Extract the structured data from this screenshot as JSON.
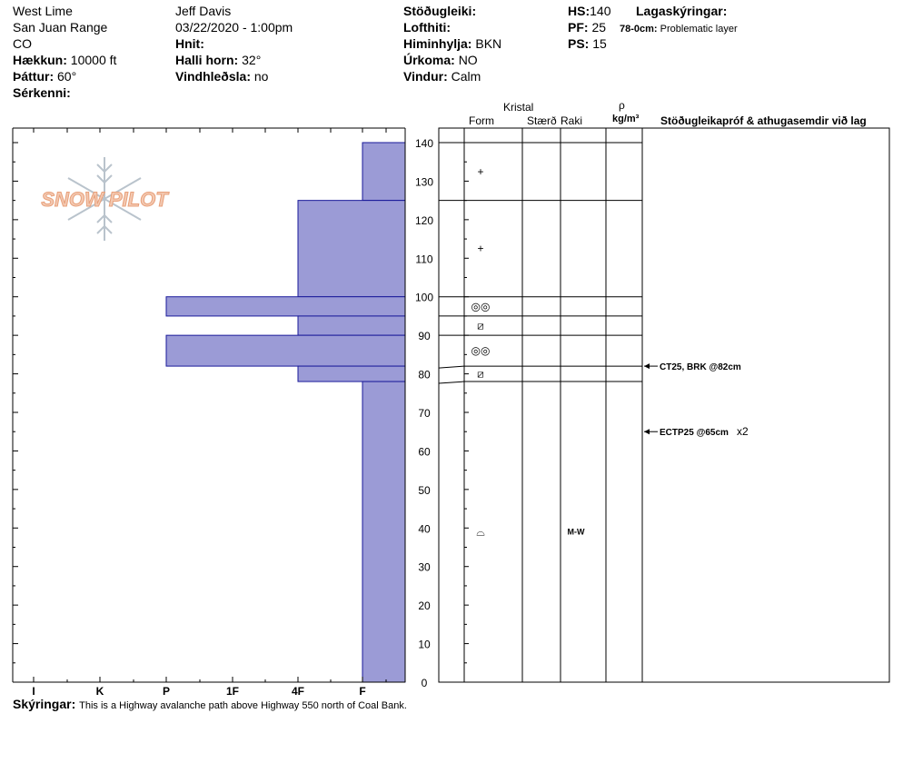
{
  "header": {
    "location": "West Lime",
    "range": "San Juan Range",
    "state": "CO",
    "elevation_label": "Hækkun:",
    "elevation_value": "10000 ft",
    "aspect_label": "Þáttur:",
    "aspect_value": "60°",
    "features_label": "Sérkenni:",
    "observer": "Jeff Davis",
    "datetime": "03/22/2020 - 1:00pm",
    "coords_label": "Hnit:",
    "slope_label": "Halli horn:",
    "slope_value": "32°",
    "wind_loading_label": "Vindhleðsla:",
    "wind_loading_value": "no",
    "stability_label": "Stöðugleiki:",
    "air_temp_label": "Lofthiti:",
    "sky_label": "Himinhylja:",
    "sky_value": "BKN",
    "precip_label": "Úrkoma:",
    "precip_value": "NO",
    "wind_label": "Vindur:",
    "wind_value": "Calm",
    "hs_label": "HS:",
    "hs_value": "140",
    "pf_label": "PF:",
    "pf_value": "25",
    "ps_label": "PS:",
    "ps_value": "15",
    "legend_label": "Lagaskýringar:",
    "legend_range": "78-0cm:",
    "legend_text": "Problematic layer"
  },
  "table_headers": {
    "crystal": "Kristal",
    "form": "Form",
    "size": "Stærð",
    "moisture": "Raki",
    "rho": "ρ",
    "density_unit": "kg/m³",
    "tests": "Stöðugleikapróf & athugasemdir við lag"
  },
  "footer": {
    "comments_label": "Skýringar:",
    "comments_text": "This is a Highway avalanche path above Highway 550 north of Coal Bank."
  },
  "logo_text": "SNOW PILOT",
  "colors": {
    "layer_fill": "#9b9bd6",
    "layer_stroke": "#1a1a9a",
    "logo": "#e8a07a",
    "snowflake": "#b9c3cc"
  },
  "chart_data": {
    "type": "bar",
    "orientation": "horizontal",
    "title": "",
    "ylabel": "",
    "ylim": [
      0,
      140
    ],
    "y_ticks": [
      0,
      10,
      20,
      30,
      40,
      50,
      60,
      70,
      80,
      90,
      100,
      110,
      120,
      130,
      140
    ],
    "hardness_scale": [
      "I",
      "K",
      "P",
      "1F",
      "4F",
      "F"
    ],
    "layers": [
      {
        "top": 140,
        "bottom": 125,
        "hardness": "F"
      },
      {
        "top": 125,
        "bottom": 100,
        "hardness": "4F"
      },
      {
        "top": 100,
        "bottom": 95,
        "hardness": "P"
      },
      {
        "top": 95,
        "bottom": 90,
        "hardness": "4F"
      },
      {
        "top": 90,
        "bottom": 82,
        "hardness": "P"
      },
      {
        "top": 82,
        "bottom": 78,
        "hardness": "4F"
      },
      {
        "top": 78,
        "bottom": 0,
        "hardness": "F"
      }
    ],
    "table_lines": [
      140,
      125,
      100,
      95,
      90,
      82,
      78
    ],
    "crystals": [
      {
        "height": 132.5,
        "symbol": "+"
      },
      {
        "height": 112.5,
        "symbol": "+"
      },
      {
        "height": 97.5,
        "symbol": "◎◎"
      },
      {
        "height": 92.5,
        "symbol": "⧄"
      },
      {
        "height": 86,
        "symbol": "◎◎"
      },
      {
        "height": 80,
        "symbol": "⧄"
      },
      {
        "height": 39,
        "symbol": "⌓"
      }
    ],
    "moisture": [
      {
        "height": 39,
        "value": "M-W"
      }
    ],
    "tests": [
      {
        "height": 82,
        "label": "CT25, BRK @82cm",
        "note": ""
      },
      {
        "height": 65,
        "label": "ECTP25 @65cm",
        "note": "x2"
      }
    ]
  }
}
